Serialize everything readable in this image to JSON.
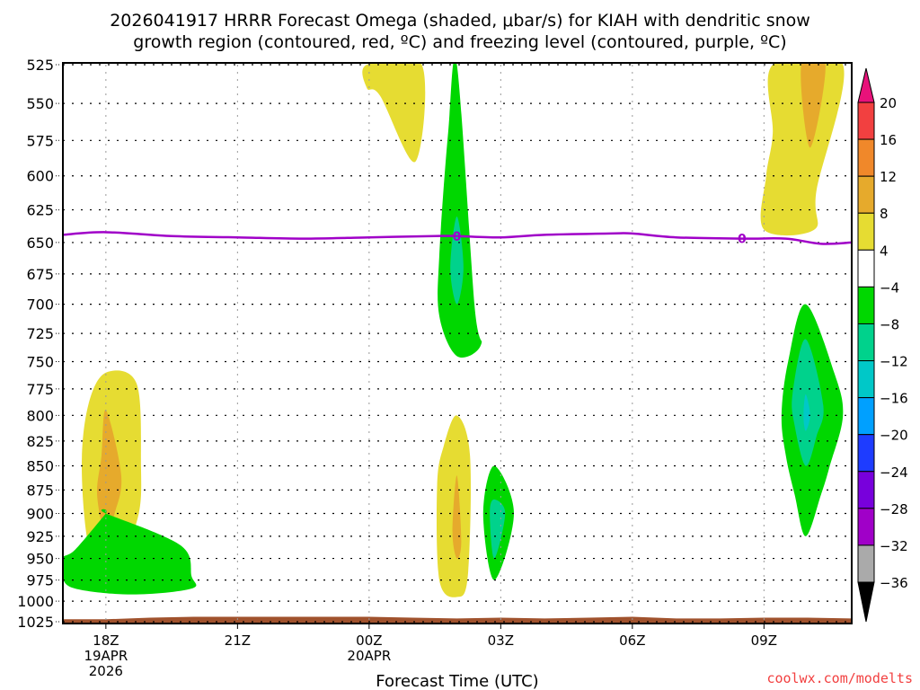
{
  "chart_data": {
    "type": "heatmap",
    "title_line1": "2026041917 HRRR Forecast Omega (shaded, μbar/s) for KIAH with dendritic snow",
    "title_line2": "growth region (contoured, red, ºC) and freezing level (contoured, purple, ºC)",
    "xlabel": "Forecast Time (UTC)",
    "ylabel": "",
    "credit": "coolwx.com/modelts",
    "y_axis": {
      "scale": "log-pressure",
      "reversed": true,
      "range": [
        525,
        1025
      ],
      "ticks": [
        "525",
        "550",
        "575",
        "600",
        "625",
        "650",
        "675",
        "700",
        "725",
        "750",
        "775",
        "800",
        "825",
        "850",
        "875",
        "900",
        "925",
        "950",
        "975",
        "1000",
        "1025"
      ]
    },
    "x_axis": {
      "unit": "hours since 18Z 19APR",
      "range": [
        -0.98,
        17.0
      ],
      "ticks": [
        {
          "hour": 0,
          "lines": [
            "18Z",
            "19APR",
            "2026"
          ]
        },
        {
          "hour": 3,
          "lines": [
            "21Z"
          ]
        },
        {
          "hour": 6,
          "lines": [
            "00Z",
            "20APR"
          ]
        },
        {
          "hour": 9,
          "lines": [
            "03Z"
          ]
        },
        {
          "hour": 12,
          "lines": [
            "06Z"
          ]
        },
        {
          "hour": 15,
          "lines": [
            "09Z"
          ]
        }
      ]
    },
    "grid": true,
    "colorbar": {
      "levels": [
        "20",
        "16",
        "12",
        "8",
        "4",
        "−4",
        "−8",
        "−12",
        "−16",
        "−20",
        "−24",
        "−28",
        "−32",
        "−36"
      ],
      "top_arrow_color": "#e8127a",
      "bottom_arrow_color": "#000000",
      "bins": [
        {
          "range": "16 to 20",
          "color": "#f24040"
        },
        {
          "range": "12 to 16",
          "color": "#f0882a"
        },
        {
          "range": "8 to 12",
          "color": "#e6aa2c"
        },
        {
          "range": "4 to 8",
          "color": "#e6dc32"
        },
        {
          "range": "-4 to 4",
          "color": "#ffffff"
        },
        {
          "range": "-8 to -4",
          "color": "#00d700"
        },
        {
          "range": "-12 to -8",
          "color": "#00d28c"
        },
        {
          "range": "-16 to -12",
          "color": "#00c8c8"
        },
        {
          "range": "-20 to -16",
          "color": "#00a0ff"
        },
        {
          "range": "-24 to -20",
          "color": "#1e3cff"
        },
        {
          "range": "-28 to -24",
          "color": "#7800dc"
        },
        {
          "range": "-32 to -28",
          "color": "#a000c8"
        },
        {
          "range": "-36 to -32",
          "color": "#aaaaaa"
        }
      ]
    },
    "omega_regions": [
      {
        "name": "rising-18z-low",
        "level": "4 to 8",
        "color": "#e6dc32",
        "points": [
          [
            0,
            760
          ],
          [
            0.7,
            770
          ],
          [
            0.8,
            850
          ],
          [
            0.75,
            900
          ],
          [
            0.4,
            945
          ],
          [
            0,
            975
          ],
          [
            -0.4,
            935
          ],
          [
            -0.55,
            850
          ],
          [
            -0.4,
            790
          ]
        ]
      },
      {
        "name": "rising-18z-core",
        "level": "8 to 12",
        "color": "#e6aa2c",
        "points": [
          [
            0,
            795
          ],
          [
            0.35,
            860
          ],
          [
            0.2,
            900
          ],
          [
            0,
            925
          ],
          [
            -0.2,
            880
          ],
          [
            -0.1,
            840
          ]
        ]
      },
      {
        "name": "sinking-22z",
        "level": "-8 to -4",
        "color": "#00d700",
        "points": [
          [
            -1.0,
            950
          ],
          [
            -0.7,
            940
          ],
          [
            0,
            900
          ],
          [
            0,
            900
          ],
          [
            1.7,
            935
          ],
          [
            1.95,
            970
          ],
          [
            1.95,
            985
          ],
          [
            0.6,
            992
          ],
          [
            -0.7,
            985
          ],
          [
            -1.0,
            970
          ]
        ]
      },
      {
        "name": "rising-01z-upper",
        "level": "4 to 8",
        "color": "#e6dc32",
        "points": [
          [
            5.95,
            525
          ],
          [
            7.2,
            525
          ],
          [
            7.05,
            590
          ],
          [
            6.25,
            545
          ],
          [
            5.95,
            540
          ]
        ]
      },
      {
        "name": "sinking-02z-column",
        "level": "-8 to -4",
        "color": "#00d700",
        "points": [
          [
            8.0,
            525
          ],
          [
            8.4,
            700
          ],
          [
            8.55,
            735
          ],
          [
            8.0,
            745
          ],
          [
            7.6,
            710
          ],
          [
            7.6,
            660
          ],
          [
            7.8,
            570
          ]
        ]
      },
      {
        "name": "sinking-02z-core",
        "level": "-12 to -8",
        "color": "#00d28c",
        "points": [
          [
            8.0,
            630
          ],
          [
            8.15,
            670
          ],
          [
            8.0,
            700
          ],
          [
            7.85,
            670
          ]
        ]
      },
      {
        "name": "rising-02z-low",
        "level": "4 to 8",
        "color": "#e6dc32",
        "points": [
          [
            8.0,
            800
          ],
          [
            8.3,
            840
          ],
          [
            8.25,
            970
          ],
          [
            8.0,
            995
          ],
          [
            7.6,
            975
          ],
          [
            7.55,
            870
          ],
          [
            7.7,
            830
          ]
        ]
      },
      {
        "name": "rising-02z-low-core",
        "level": "8 to 12",
        "color": "#e6aa2c",
        "points": [
          [
            8.0,
            860
          ],
          [
            8.1,
            930
          ],
          [
            8.0,
            950
          ],
          [
            7.9,
            920
          ]
        ]
      },
      {
        "name": "sinking-03z",
        "level": "-8 to -4",
        "color": "#00d700",
        "points": [
          [
            8.85,
            850
          ],
          [
            9.3,
            900
          ],
          [
            8.85,
            975
          ],
          [
            8.6,
            900
          ]
        ]
      },
      {
        "name": "sinking-03z-core",
        "level": "-12 to -8",
        "color": "#00d28c",
        "points": [
          [
            8.85,
            885
          ],
          [
            9.1,
            900
          ],
          [
            8.85,
            950
          ],
          [
            8.75,
            900
          ]
        ]
      },
      {
        "name": "rising-10z-upper",
        "level": "4 to 8",
        "color": "#e6dc32",
        "points": [
          [
            15.2,
            525
          ],
          [
            16.8,
            525
          ],
          [
            16.2,
            610
          ],
          [
            16.15,
            640
          ],
          [
            15.0,
            640
          ],
          [
            15.05,
            600
          ],
          [
            15.2,
            570
          ]
        ]
      },
      {
        "name": "rising-10z-core",
        "level": "8 to 12",
        "color": "#e6aa2c",
        "points": [
          [
            15.85,
            525
          ],
          [
            16.4,
            525
          ],
          [
            16.05,
            580
          ]
        ]
      },
      {
        "name": "sinking-10z",
        "level": "-8 to -4",
        "color": "#00d700",
        "points": [
          [
            15.95,
            700
          ],
          [
            16.6,
            760
          ],
          [
            16.8,
            800
          ],
          [
            16.5,
            850
          ],
          [
            16.3,
            880
          ],
          [
            15.95,
            925
          ],
          [
            15.7,
            880
          ],
          [
            15.5,
            840
          ],
          [
            15.4,
            800
          ],
          [
            15.55,
            750
          ]
        ]
      },
      {
        "name": "sinking-10z-core",
        "level": "-12 to -8",
        "color": "#00d28c",
        "points": [
          [
            15.95,
            730
          ],
          [
            16.35,
            790
          ],
          [
            16.2,
            820
          ],
          [
            15.95,
            850
          ],
          [
            15.7,
            810
          ],
          [
            15.65,
            780
          ]
        ]
      },
      {
        "name": "sinking-10z-inner",
        "level": "-16 to -12",
        "color": "#00c8c8",
        "points": [
          [
            15.95,
            780
          ],
          [
            16.05,
            800
          ],
          [
            15.95,
            815
          ],
          [
            15.9,
            800
          ]
        ]
      }
    ],
    "freezing_level": {
      "label": "0",
      "color": "#a000c8",
      "points": [
        [
          -0.98,
          644
        ],
        [
          0,
          642
        ],
        [
          1.5,
          645
        ],
        [
          3,
          646
        ],
        [
          4.5,
          647
        ],
        [
          6,
          646
        ],
        [
          7.5,
          645
        ],
        [
          8.0,
          645
        ],
        [
          9,
          646
        ],
        [
          10,
          644
        ],
        [
          11.5,
          643
        ],
        [
          12,
          643
        ],
        [
          13,
          646
        ],
        [
          14.5,
          647
        ],
        [
          15.5,
          647
        ],
        [
          16.3,
          651
        ],
        [
          17,
          650
        ]
      ],
      "label_positions": [
        8.0,
        14.5
      ]
    },
    "surface": {
      "color": "#a0522d",
      "points": [
        [
          -0.98,
          1022
        ],
        [
          0,
          1022
        ],
        [
          1,
          1020
        ],
        [
          2,
          1019
        ],
        [
          4,
          1019
        ],
        [
          6,
          1019
        ],
        [
          7,
          1020
        ],
        [
          8,
          1021
        ],
        [
          9,
          1020
        ],
        [
          10,
          1021
        ],
        [
          11,
          1020
        ],
        [
          12,
          1019
        ],
        [
          13,
          1021
        ],
        [
          14,
          1021
        ],
        [
          15,
          1020
        ],
        [
          16,
          1020
        ],
        [
          17,
          1021
        ]
      ]
    }
  }
}
